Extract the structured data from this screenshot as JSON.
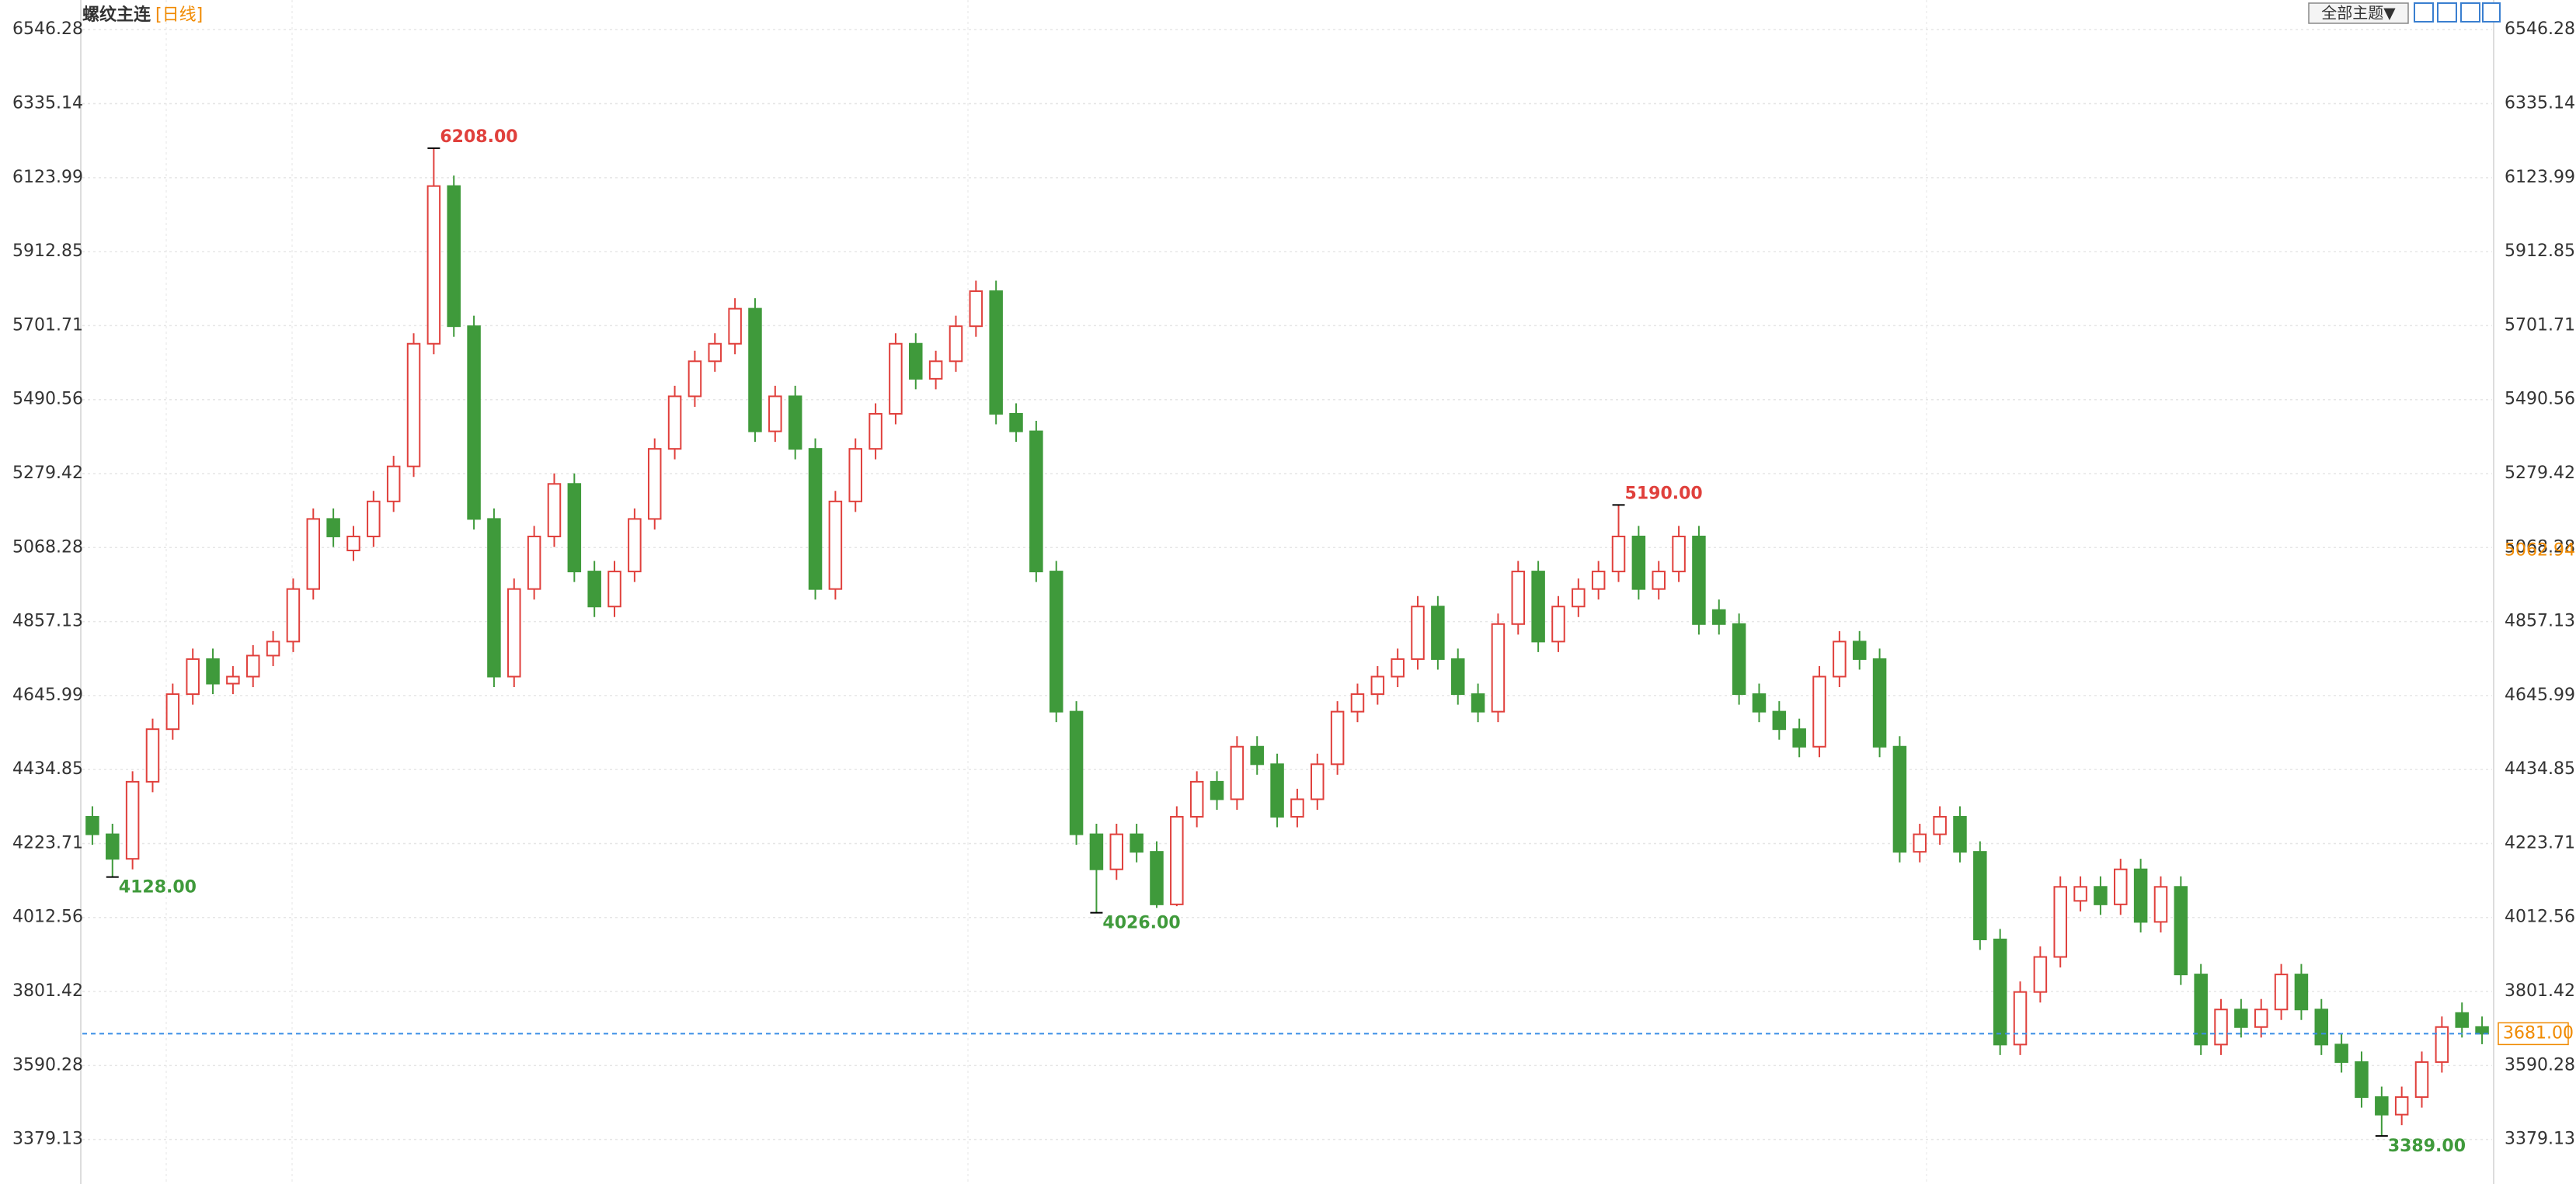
{
  "chart_data": {
    "type": "candlestick",
    "title": "螺纹主连",
    "period": "[日线]",
    "theme_button": "全部主题▼",
    "ylim": [
      3252,
      6631
    ],
    "yticks": [
      3379.13,
      3590.28,
      3801.42,
      4012.56,
      4223.71,
      4434.85,
      4645.99,
      4857.13,
      5068.28,
      5279.42,
      5490.56,
      5701.71,
      5912.85,
      6123.99,
      6335.14,
      6546.28
    ],
    "grid": true,
    "up_color": "#e0403c",
    "down_color": "#3f9a3b",
    "open": [
      4300,
      4250,
      4180,
      4400,
      4550,
      4650,
      4750,
      4680,
      4700,
      4760,
      4800,
      4950,
      5150,
      5060,
      5100,
      5200,
      5300,
      5650,
      6100,
      5700,
      5150,
      4700,
      4950,
      5100,
      5250,
      5000,
      4900,
      5000,
      5150,
      5350,
      5500,
      5600,
      5650,
      5750,
      5400,
      5500,
      5350,
      4950,
      5200,
      5350,
      5450,
      5650,
      5550,
      5600,
      5700,
      5800,
      5450,
      5400,
      5000,
      4600,
      4250,
      4150,
      4250,
      4200,
      4050,
      4300,
      4400,
      4350,
      4500,
      4450,
      4300,
      4350,
      4450,
      4600,
      4650,
      4700,
      4750,
      4900,
      4750,
      4650,
      4600,
      4850,
      5000,
      4800,
      4900,
      4950,
      5000,
      5100,
      4950,
      5000,
      5100,
      4890,
      4850,
      4650,
      4600,
      4550,
      4500,
      4700,
      4800,
      4750,
      4500,
      4200,
      4250,
      4300,
      4200,
      3950,
      3650,
      3800,
      3900,
      4060,
      4100,
      4050,
      4150,
      4000,
      4100,
      3850,
      3650,
      3750,
      3700,
      3750,
      3850,
      3750,
      3650,
      3600,
      3500,
      3450,
      3500,
      3600,
      3740,
      3700
    ],
    "high": [
      4330,
      4280,
      4430,
      4580,
      4680,
      4780,
      4780,
      4730,
      4790,
      4830,
      4980,
      5180,
      5180,
      5130,
      5230,
      5330,
      5680,
      6208,
      6130,
      5730,
      5180,
      4980,
      5130,
      5280,
      5280,
      5030,
      5030,
      5180,
      5380,
      5530,
      5630,
      5680,
      5780,
      5780,
      5530,
      5530,
      5380,
      5230,
      5380,
      5480,
      5680,
      5680,
      5630,
      5730,
      5830,
      5830,
      5480,
      5430,
      5030,
      4630,
      4280,
      4280,
      4280,
      4230,
      4330,
      4430,
      4430,
      4530,
      4530,
      4480,
      4380,
      4480,
      4630,
      4680,
      4730,
      4780,
      4930,
      4930,
      4780,
      4680,
      4880,
      5030,
      5030,
      4930,
      4980,
      5030,
      5190,
      5130,
      5030,
      5130,
      5130,
      4920,
      4880,
      4680,
      4630,
      4580,
      4730,
      4830,
      4830,
      4780,
      4530,
      4280,
      4330,
      4330,
      4230,
      3980,
      3830,
      3930,
      4130,
      4130,
      4130,
      4180,
      4180,
      4130,
      4130,
      3880,
      3780,
      3780,
      3780,
      3880,
      3880,
      3780,
      3680,
      3630,
      3530,
      3530,
      3630,
      3730,
      3770,
      3730
    ],
    "low": [
      4220,
      4128,
      4150,
      4370,
      4520,
      4620,
      4650,
      4650,
      4670,
      4730,
      4770,
      4920,
      5070,
      5030,
      5070,
      5170,
      5270,
      5620,
      5670,
      5120,
      4670,
      4670,
      4920,
      5070,
      4970,
      4870,
      4870,
      4970,
      5120,
      5320,
      5470,
      5570,
      5620,
      5370,
      5370,
      5320,
      4920,
      4920,
      5170,
      5320,
      5420,
      5520,
      5520,
      5570,
      5670,
      5420,
      5370,
      4970,
      4570,
      4220,
      4026,
      4120,
      4170,
      4040,
      4045,
      4270,
      4320,
      4320,
      4420,
      4270,
      4270,
      4320,
      4420,
      4570,
      4620,
      4670,
      4720,
      4720,
      4620,
      4570,
      4570,
      4820,
      4770,
      4770,
      4870,
      4920,
      4970,
      4920,
      4920,
      4970,
      4820,
      4820,
      4620,
      4570,
      4520,
      4470,
      4470,
      4670,
      4720,
      4470,
      4170,
      4170,
      4220,
      4170,
      3920,
      3620,
      3620,
      3770,
      3870,
      4030,
      4020,
      4020,
      3970,
      3970,
      3820,
      3620,
      3620,
      3670,
      3670,
      3720,
      3720,
      3620,
      3570,
      3470,
      3389,
      3420,
      3470,
      3570,
      3670,
      3651
    ],
    "close": [
      4250,
      4180,
      4400,
      4550,
      4650,
      4750,
      4680,
      4700,
      4760,
      4800,
      4950,
      5150,
      5100,
      5100,
      5200,
      5300,
      5650,
      6100,
      5700,
      5150,
      4700,
      4950,
      5100,
      5250,
      5000,
      4900,
      5000,
      5150,
      5350,
      5500,
      5600,
      5650,
      5750,
      5400,
      5500,
      5350,
      4950,
      5200,
      5350,
      5450,
      5650,
      5550,
      5600,
      5700,
      5800,
      5450,
      5400,
      5000,
      4600,
      4250,
      4150,
      4250,
      4200,
      4050,
      4300,
      4400,
      4350,
      4500,
      4450,
      4300,
      4350,
      4450,
      4600,
      4650,
      4700,
      4750,
      4900,
      4750,
      4650,
      4600,
      4850,
      5000,
      4800,
      4900,
      4950,
      5000,
      5100,
      4950,
      5000,
      5100,
      4850,
      4850,
      4650,
      4600,
      4550,
      4500,
      4700,
      4800,
      4750,
      4500,
      4200,
      4250,
      4300,
      4200,
      3950,
      3650,
      3800,
      3900,
      4100,
      4100,
      4050,
      4150,
      4000,
      4100,
      3850,
      3650,
      3750,
      3700,
      3750,
      3850,
      3750,
      3650,
      3600,
      3500,
      3450,
      3500,
      3600,
      3700,
      3700,
      3681
    ],
    "annotations": [
      {
        "value": 6208,
        "label": "6208.00",
        "kind": "high"
      },
      {
        "value": 4128,
        "label": "4128.00",
        "kind": "low"
      },
      {
        "value": 4026,
        "label": "4026.00",
        "kind": "low"
      },
      {
        "value": 5190,
        "label": "5190.00",
        "kind": "high"
      },
      {
        "value": 3389,
        "label": "3389.00",
        "kind": "low"
      }
    ],
    "last_price": {
      "value": 3681,
      "label": "3681.00"
    },
    "cursor_price": {
      "value": 5062.94,
      "label": "5062.94"
    }
  }
}
